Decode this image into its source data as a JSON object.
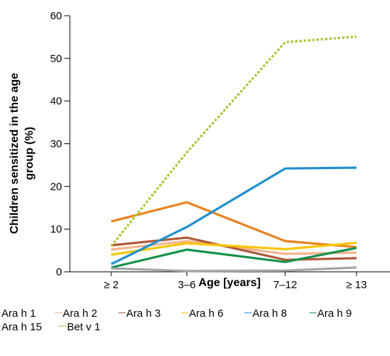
{
  "chart_data": {
    "type": "line",
    "xlabel": "Age [years]",
    "ylabel": "Children sensitized in the age group (%)",
    "categories": [
      "≥ 2",
      "3–6",
      "7–12",
      "≥ 13"
    ],
    "ylim": [
      0,
      60
    ],
    "yticks": [
      0,
      10,
      20,
      30,
      40,
      50,
      60
    ],
    "grid": false,
    "legend_position": "bottom",
    "series": [
      {
        "name": "Ara h 1",
        "values": [
          11.8,
          16.3,
          7.2,
          5.8
        ],
        "color": "#e8821e",
        "style": "solid"
      },
      {
        "name": "Ara h 2",
        "values": [
          5.2,
          7.2,
          4.2,
          4.5
        ],
        "color": "#f5b38f",
        "style": "solid"
      },
      {
        "name": "Ara h 3",
        "values": [
          6.2,
          8.0,
          2.8,
          3.2
        ],
        "color": "#b0593a",
        "style": "solid"
      },
      {
        "name": "Ara h 6",
        "values": [
          4.0,
          6.7,
          5.3,
          6.8
        ],
        "color": "#f7c600",
        "style": "solid"
      },
      {
        "name": "Ara h 8",
        "values": [
          1.8,
          10.5,
          24.2,
          24.4
        ],
        "color": "#1f8fd0",
        "style": "solid"
      },
      {
        "name": "Ara h 9",
        "values": [
          1.0,
          5.2,
          2.3,
          5.6
        ],
        "color": "#16924a",
        "style": "solid"
      },
      {
        "name": "Ara h 15",
        "values": [
          0.8,
          0.2,
          0.3,
          1.0
        ],
        "color": "#a6a6a6",
        "style": "solid"
      },
      {
        "name": "Bet v 1",
        "values": [
          6.0,
          28.0,
          53.8,
          55.1
        ],
        "color": "#a6c83a",
        "style": "dotted"
      }
    ]
  }
}
